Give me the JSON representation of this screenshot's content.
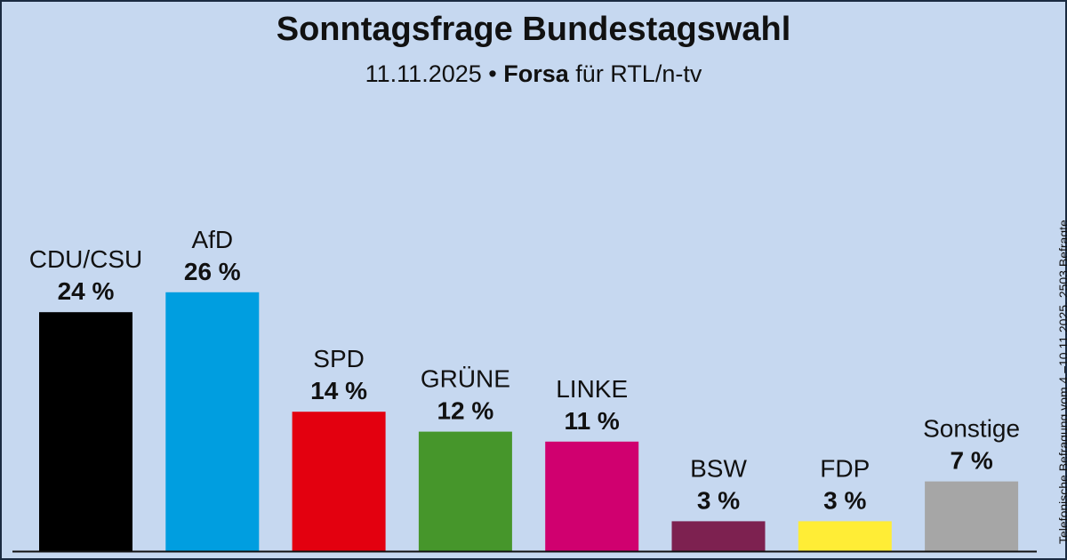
{
  "header": {
    "title": "Sonntagsfrage Bundestagswahl",
    "date": "11.11.2025",
    "separator": "•",
    "source_bold": "Forsa",
    "source_rest": "für RTL/n-tv"
  },
  "side_note": "Telefonische Befragung vom 4.–10.11.2025, 2503 Befragte",
  "colors": {
    "background": "#c6d8f0",
    "baseline": "#111111"
  },
  "chart_data": {
    "type": "bar",
    "title": "Sonntagsfrage Bundestagswahl",
    "categories": [
      "CDU/CSU",
      "AfD",
      "SPD",
      "GRÜNE",
      "LINKE",
      "BSW",
      "FDP",
      "Sonstige"
    ],
    "values": [
      24,
      26,
      14,
      12,
      11,
      3,
      3,
      7
    ],
    "value_labels": [
      "24 %",
      "26 %",
      "14 %",
      "12 %",
      "11 %",
      "3 %",
      "3 %",
      "7 %"
    ],
    "colors": [
      "#000000",
      "#009ee0",
      "#e3000f",
      "#46962b",
      "#d0006f",
      "#7d2150",
      "#ffed36",
      "#a6a6a6"
    ],
    "unit": "%",
    "grid": false,
    "legend": "none"
  }
}
